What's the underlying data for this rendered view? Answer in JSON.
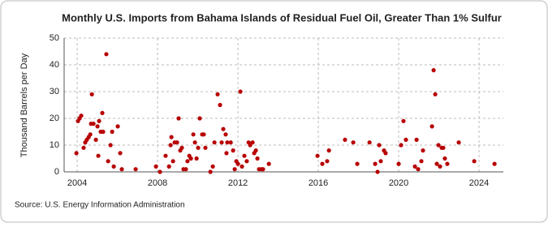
{
  "chart_data": {
    "type": "scatter",
    "title": "Monthly U.S. Imports from Bahama Islands of Residual Fuel Oil, Greater Than 1% Sulfur",
    "ylabel": "Thousand Barrels per Day",
    "source": "Source: U.S. Energy Information Administration",
    "x": [
      2003.96,
      2004.04,
      2004.12,
      2004.2,
      2004.32,
      2004.4,
      2004.48,
      2004.57,
      2004.65,
      2004.69,
      2004.73,
      2004.81,
      2004.93,
      2005.01,
      2005.05,
      2005.09,
      2005.17,
      2005.25,
      2005.29,
      2005.45,
      2005.54,
      2005.66,
      2005.74,
      2005.82,
      2006.02,
      2006.14,
      2006.22,
      2006.91,
      2007.92,
      2008.12,
      2008.4,
      2008.57,
      2008.65,
      2008.69,
      2008.77,
      2008.85,
      2008.97,
      2009.05,
      2009.13,
      2009.21,
      2009.29,
      2009.41,
      2009.49,
      2009.58,
      2009.66,
      2009.78,
      2009.86,
      2009.94,
      2010.02,
      2010.1,
      2010.22,
      2010.3,
      2010.38,
      2010.63,
      2010.75,
      2010.83,
      2010.99,
      2011.11,
      2011.19,
      2011.27,
      2011.39,
      2011.43,
      2011.47,
      2011.64,
      2011.76,
      2011.84,
      2011.92,
      2012.0,
      2012.12,
      2012.2,
      2012.32,
      2012.44,
      2012.53,
      2012.61,
      2012.73,
      2012.81,
      2012.89,
      2012.97,
      2013.05,
      2013.17,
      2013.25,
      2013.54,
      2015.96,
      2016.2,
      2016.44,
      2016.53,
      2017.33,
      2017.74,
      2017.94,
      2018.55,
      2018.83,
      2018.95,
      2019.03,
      2019.11,
      2019.27,
      2019.35,
      2020.0,
      2020.12,
      2020.24,
      2020.36,
      2020.81,
      2020.89,
      2020.97,
      2021.13,
      2021.21,
      2021.66,
      2021.74,
      2021.82,
      2021.9,
      2021.98,
      2022.06,
      2022.14,
      2022.22,
      2022.3,
      2022.42,
      2022.99,
      2023.76,
      2024.77
    ],
    "series": [
      {
        "color": "#b80000",
        "values": [
          7,
          19,
          20,
          21,
          9,
          11,
          12,
          13,
          14,
          18,
          29,
          18,
          12,
          17,
          6,
          19,
          15,
          22,
          15,
          44,
          4,
          10,
          15,
          2,
          17,
          7,
          1,
          1,
          2,
          0,
          6,
          2,
          10,
          13,
          4,
          11,
          11,
          20,
          8,
          9,
          1,
          1,
          4,
          6,
          5,
          14,
          11,
          5,
          9,
          20,
          14,
          14,
          9,
          0,
          2,
          11,
          29,
          25,
          11,
          16,
          14,
          7,
          11,
          11,
          8,
          1,
          4,
          3,
          30,
          2,
          6,
          4,
          11,
          10,
          11,
          7,
          8,
          5,
          1,
          1,
          1,
          3,
          6,
          3,
          4,
          8,
          12,
          11,
          3,
          11,
          3,
          0,
          10,
          4,
          8,
          7,
          3,
          10,
          19,
          12,
          2,
          12,
          1,
          4,
          8,
          17,
          38,
          29,
          3,
          10,
          2,
          9,
          9,
          5,
          3,
          11,
          4,
          3
        ]
      }
    ],
    "xlim": [
      2003.35,
      2025.21
    ],
    "xticks": [
      2004,
      2008,
      2012,
      2016,
      2020,
      2024
    ],
    "ylim": [
      0,
      50
    ],
    "yticks": [
      0,
      10,
      20,
      30,
      40,
      50
    ],
    "grid": true
  }
}
